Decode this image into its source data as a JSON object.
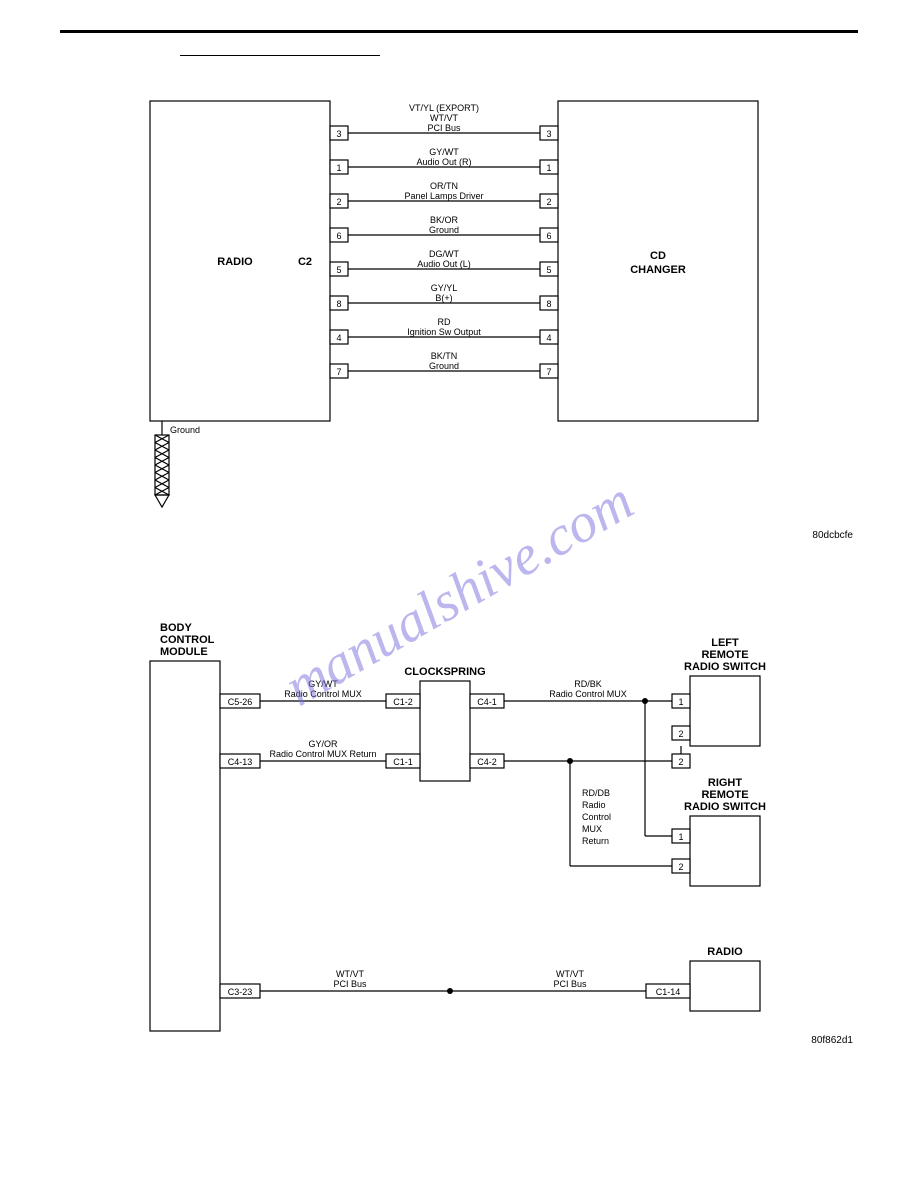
{
  "watermark": "manualshive.com",
  "diagram1": {
    "left_box": {
      "label": "RADIO",
      "sub": "C2",
      "gnd": "Ground"
    },
    "right_box": {
      "label1": "CD",
      "label2": "CHANGER"
    },
    "wires": [
      {
        "top": "VT/YL (EXPORT)",
        "mid": "WT/VT",
        "bot": "PCI Bus",
        "lp": "3",
        "rp": "3"
      },
      {
        "top": "GY/WT",
        "bot": "Audio Out (R)",
        "lp": "1",
        "rp": "1"
      },
      {
        "top": "OR/TN",
        "bot": "Panel Lamps Driver",
        "lp": "2",
        "rp": "2"
      },
      {
        "top": "BK/OR",
        "bot": "Ground",
        "lp": "6",
        "rp": "6"
      },
      {
        "top": "DG/WT",
        "bot": "Audio Out (L)",
        "lp": "5",
        "rp": "5"
      },
      {
        "top": "GY/YL",
        "bot": "B(+)",
        "lp": "8",
        "rp": "8"
      },
      {
        "top": "RD",
        "bot": "Ignition Sw Output",
        "lp": "4",
        "rp": "4"
      },
      {
        "top": "BK/TN",
        "bot": "Ground",
        "lp": "7",
        "rp": "7"
      }
    ],
    "fig_code": "80dcbcfe"
  },
  "diagram2": {
    "bcm": {
      "l1": "BODY",
      "l2": "CONTROL",
      "l3": "MODULE"
    },
    "clockspring": "CLOCKSPRING",
    "left_sw": {
      "l1": "LEFT",
      "l2": "REMOTE",
      "l3": "RADIO SWITCH"
    },
    "right_sw": {
      "l1": "RIGHT",
      "l2": "REMOTE",
      "l3": "RADIO SWITCH"
    },
    "radio": "RADIO",
    "wire1": {
      "top": "GY/WT",
      "bot": "Radio Control MUX",
      "lp": "C5-26",
      "cs_l": "C1-2",
      "cs_r": "C4-1",
      "rtop": "RD/BK",
      "rbot": "Radio Control MUX",
      "sw_p": "1"
    },
    "wire2": {
      "top": "GY/OR",
      "bot": "Radio Control MUX Return",
      "lp": "C4-13",
      "cs_l": "C1-1",
      "cs_r": "C4-2",
      "sw_p": "2"
    },
    "mux_ret": {
      "l1": "RD/DB",
      "l2": "Radio",
      "l3": "Control",
      "l4": "MUX",
      "l5": "Return"
    },
    "right_sw_p1": "1",
    "right_sw_p2": "2",
    "wire3": {
      "top": "WT/VT",
      "bot": "PCI Bus",
      "lp": "C3-23",
      "rp": "C1-14"
    },
    "fig_code": "80f862d1"
  },
  "style": {
    "stroke": "#000000",
    "stroke_w": 1.2,
    "font_label": 11,
    "font_wire": 9,
    "font_pin": 9,
    "box_fill": "#ffffff"
  }
}
